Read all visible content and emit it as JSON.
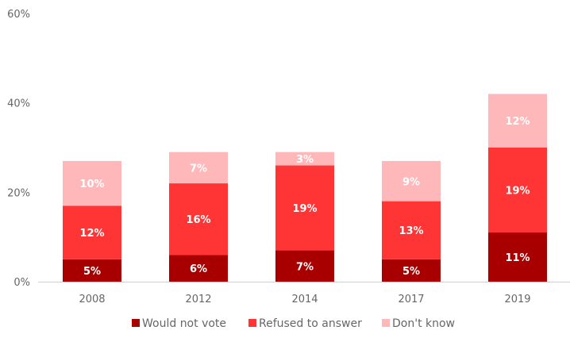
{
  "chart_data": {
    "type": "bar",
    "stacked": true,
    "title": "",
    "xlabel": "",
    "ylabel": "",
    "ylim": [
      0,
      60
    ],
    "yticks": [
      "0%",
      "20%",
      "40%",
      "60%"
    ],
    "ytick_values": [
      0,
      20,
      40,
      60
    ],
    "grid": false,
    "legend_position": "bottom",
    "categories": [
      "2008",
      "2012",
      "2014",
      "2017",
      "2019"
    ],
    "series": [
      {
        "name": "Would not vote",
        "color": "#A80000",
        "values": [
          5,
          6,
          7,
          5,
          11
        ],
        "labels": [
          "5%",
          "6%",
          "7%",
          "5%",
          "11%"
        ]
      },
      {
        "name": "Refused to answer",
        "color": "#FF3535",
        "values": [
          12,
          16,
          19,
          13,
          19
        ],
        "labels": [
          "12%",
          "16%",
          "19%",
          "13%",
          "19%"
        ]
      },
      {
        "name": "Don't know",
        "color": "#FFB8BA",
        "values": [
          10,
          7,
          3,
          9,
          12
        ],
        "labels": [
          "10%",
          "7%",
          "3%",
          "9%",
          "12%"
        ]
      }
    ]
  }
}
